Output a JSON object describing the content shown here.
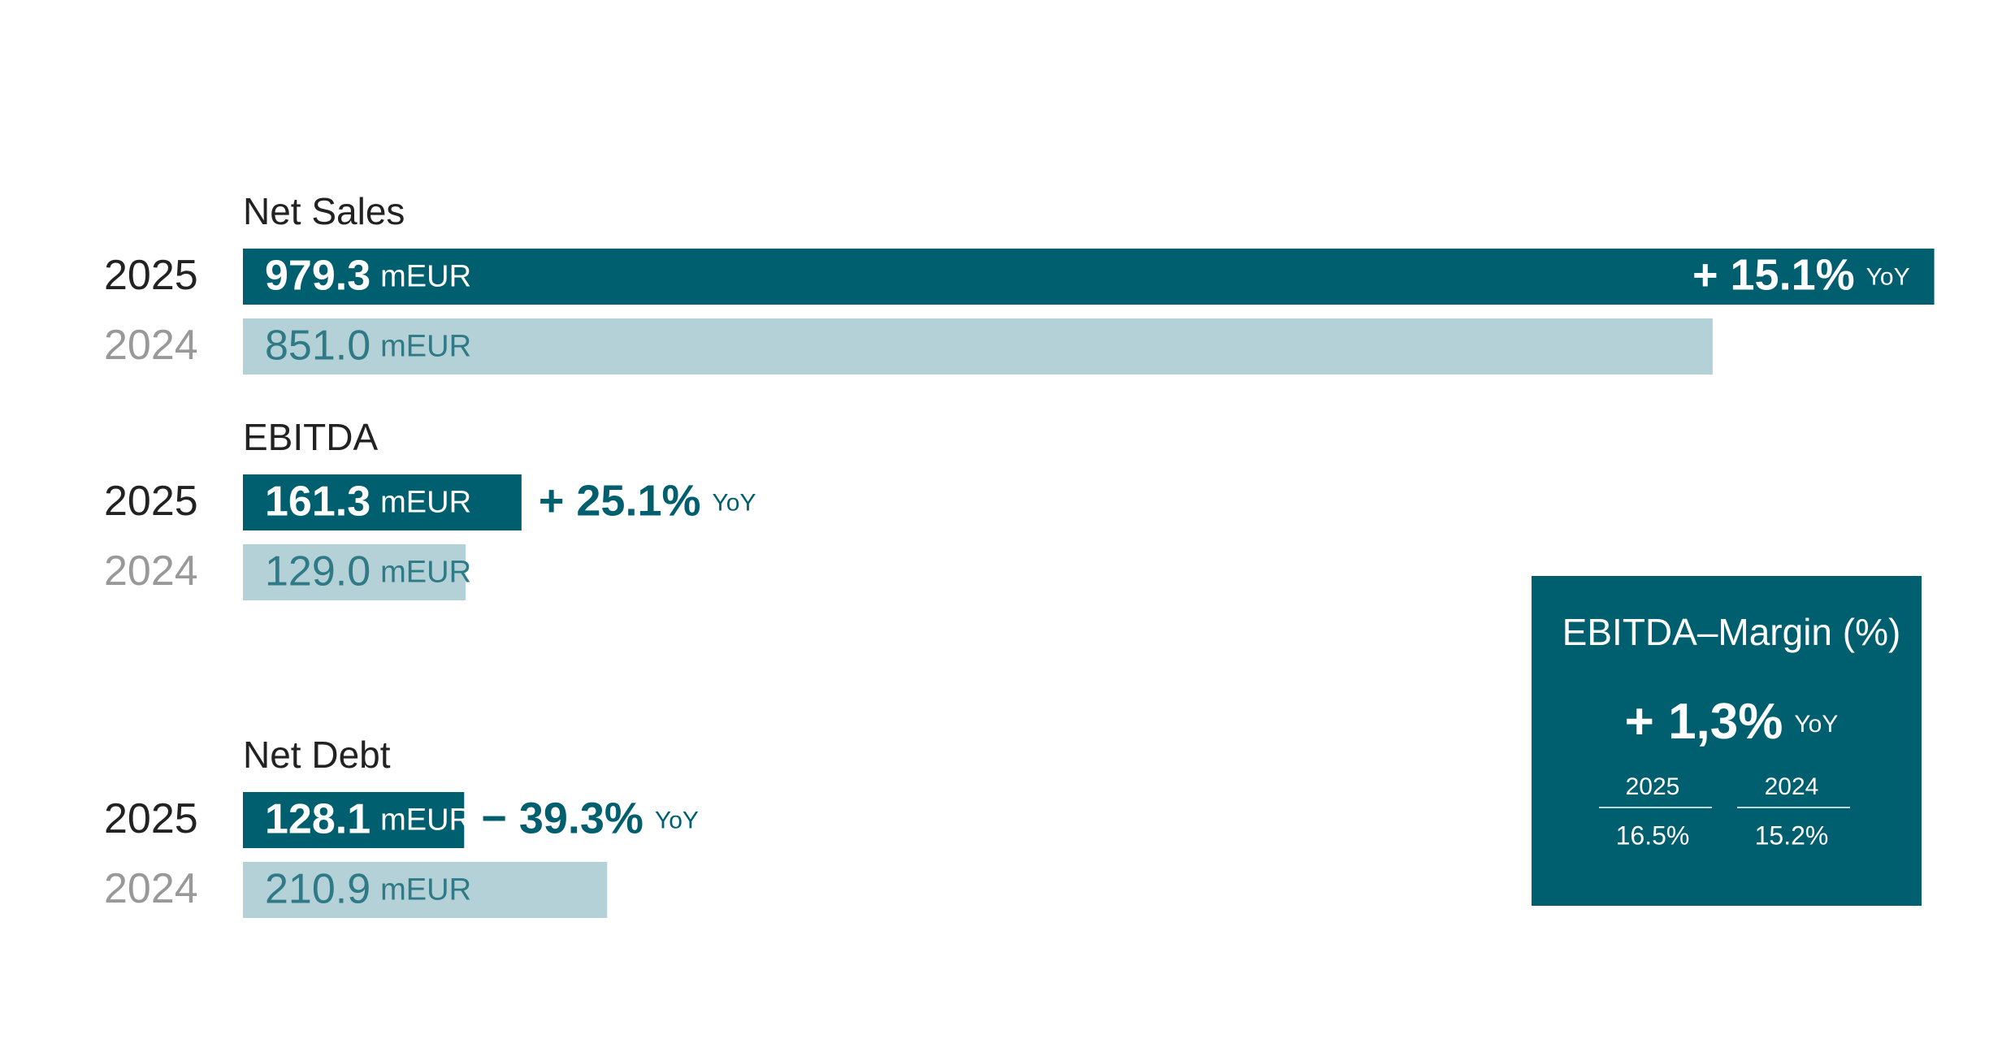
{
  "chart_data": [
    {
      "type": "bar",
      "title": "Net Sales",
      "categories": [
        "2025",
        "2024"
      ],
      "values": [
        979.3,
        851.0
      ],
      "value_labels": [
        "979.3",
        "851.0"
      ],
      "unit": "mEUR",
      "change": "+ 15.1%",
      "change_unit": "YoY",
      "colors": [
        "#005f6e",
        "#b3d1d6"
      ]
    },
    {
      "type": "bar",
      "title": "EBITDA",
      "categories": [
        "2025",
        "2024"
      ],
      "values": [
        161.3,
        129.0
      ],
      "value_labels": [
        "161.3",
        "129.0"
      ],
      "unit": "mEUR",
      "change": "+ 25.1%",
      "change_unit": "YoY",
      "colors": [
        "#005f6e",
        "#b3d1d6"
      ]
    },
    {
      "type": "bar",
      "title": "Net Debt",
      "categories": [
        "2025",
        "2024"
      ],
      "values": [
        128.1,
        210.9
      ],
      "value_labels": [
        "128.1",
        "210.9"
      ],
      "unit": "mEUR",
      "change": "− 39.3%",
      "change_unit": "YoY",
      "colors": [
        "#005f6e",
        "#b3d1d6"
      ]
    }
  ],
  "margin_box": {
    "title": "EBITDA–Margin (%)",
    "change": "+ 1,3%",
    "change_unit": "YoY",
    "years": [
      "2025",
      "2024"
    ],
    "values": [
      "16.5%",
      "15.2%"
    ]
  }
}
